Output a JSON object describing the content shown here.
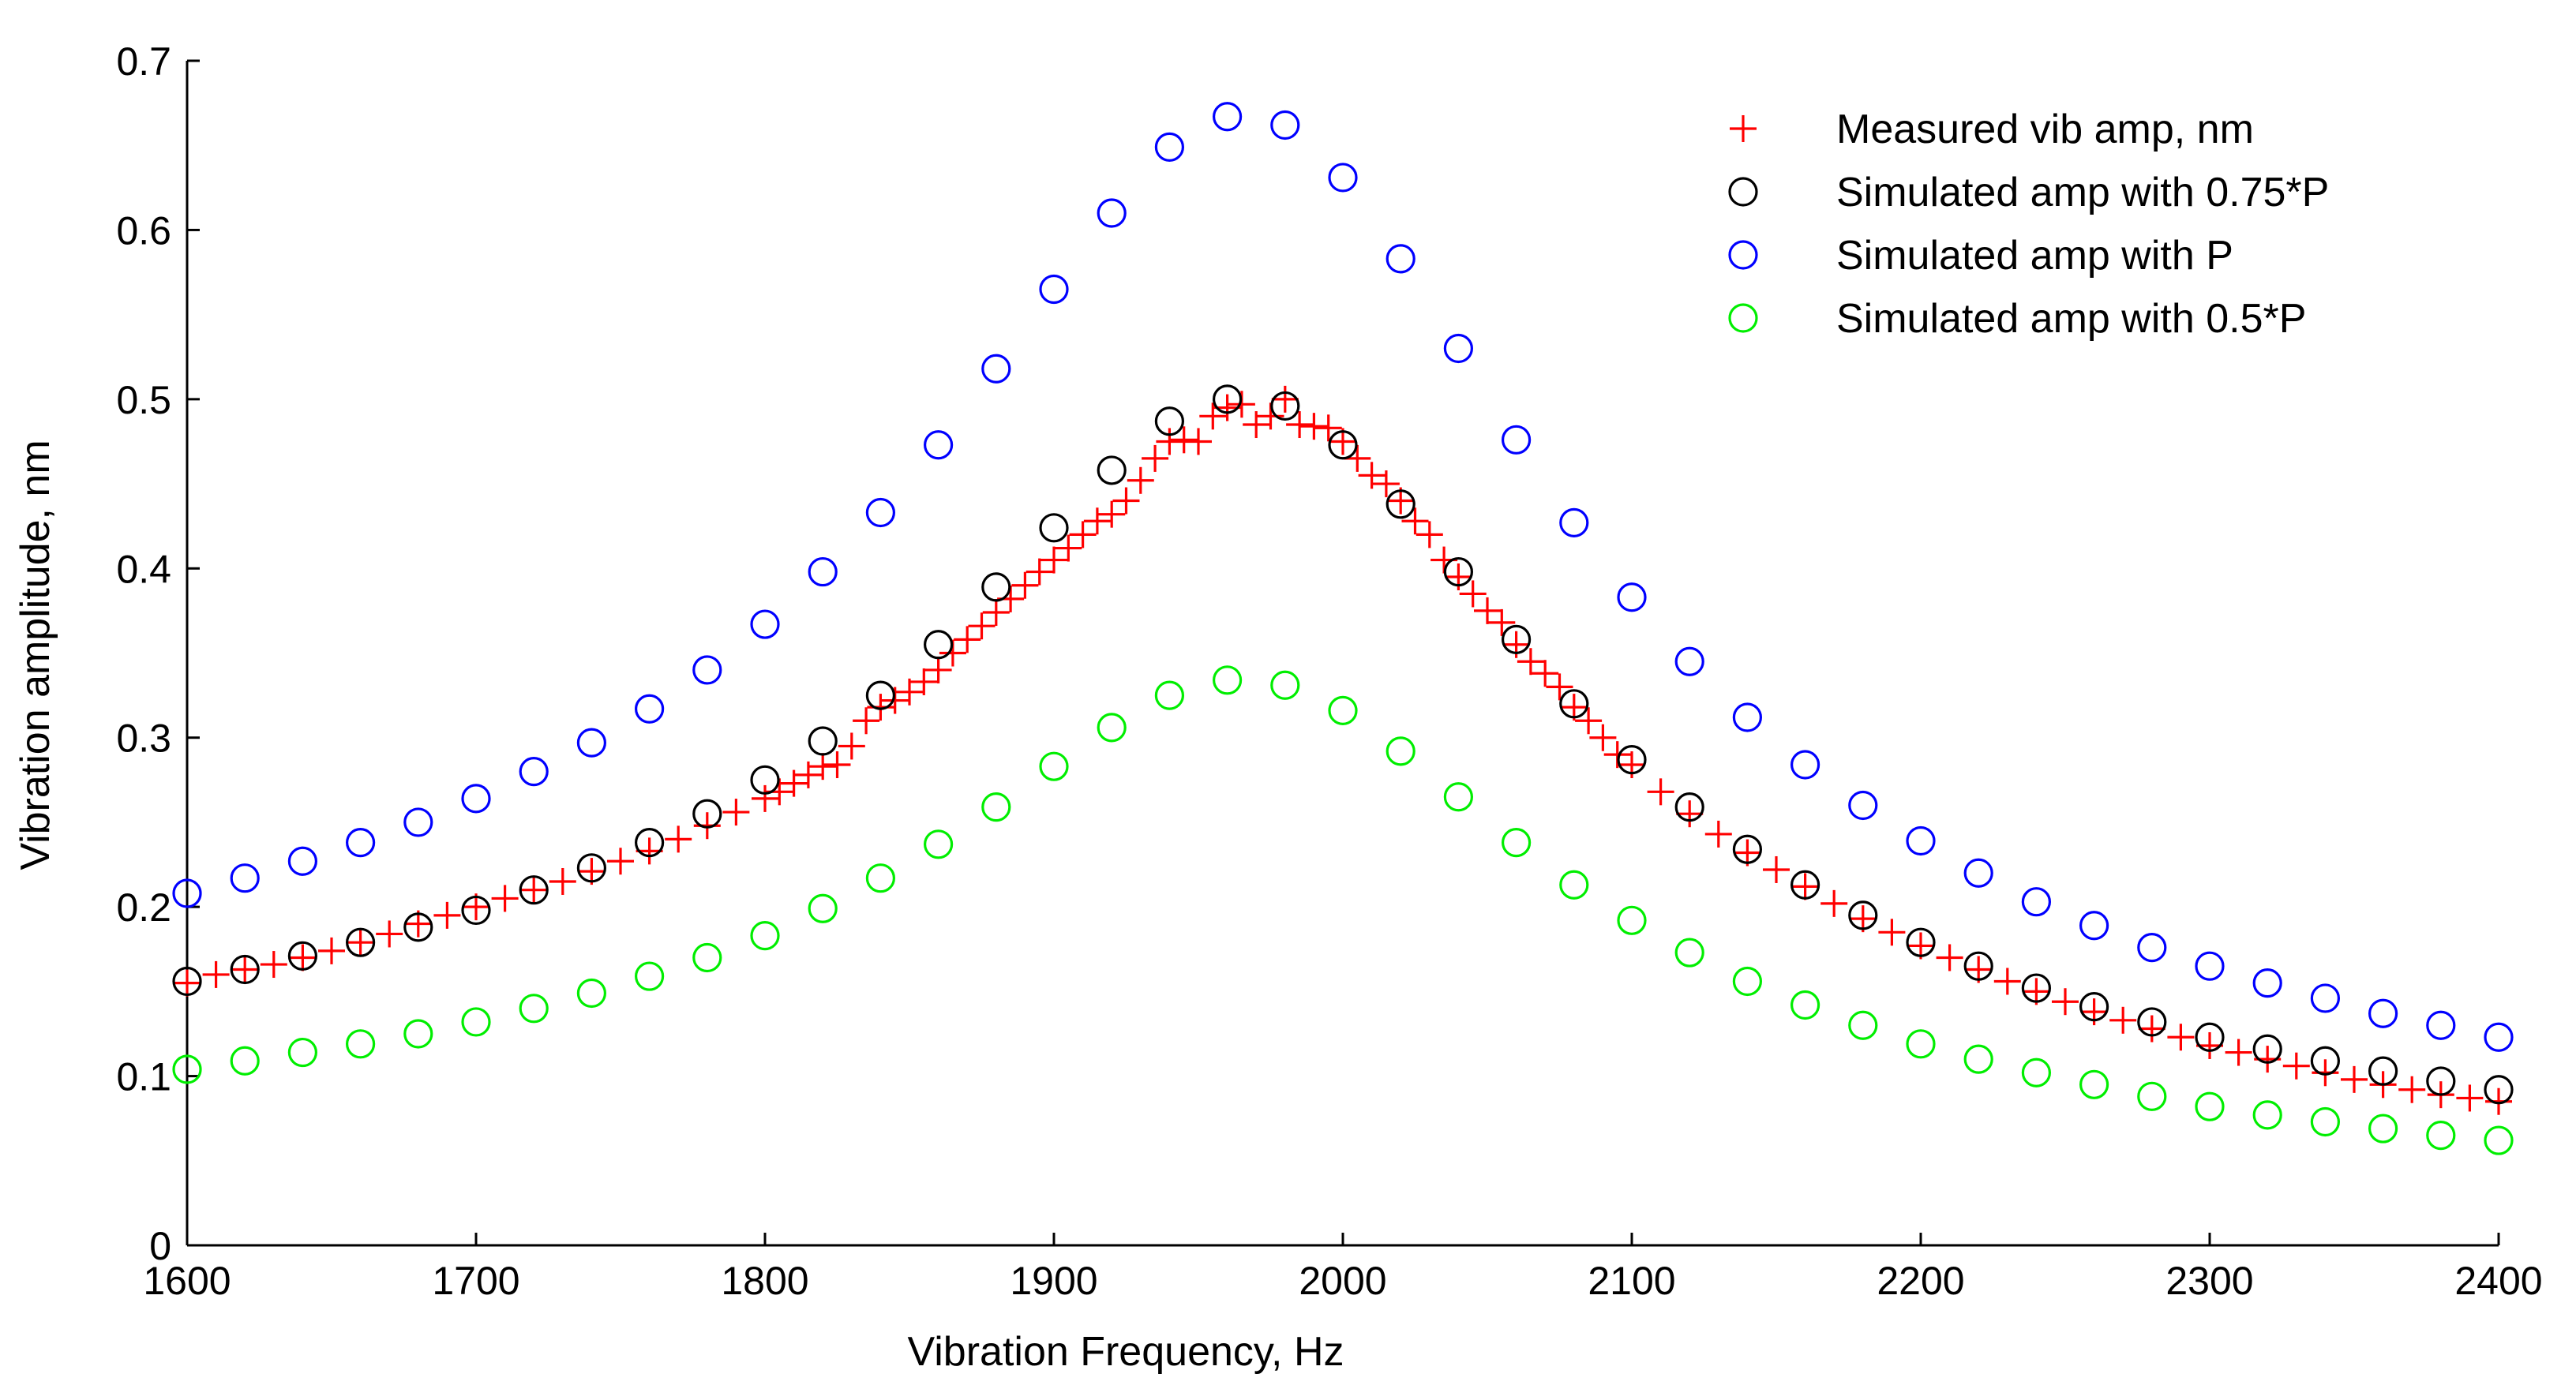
{
  "chart_data": {
    "type": "scatter",
    "title": "",
    "xlabel": "Vibration Frequency, Hz",
    "ylabel": "Vibration amplitude, nm",
    "xlim": [
      1600,
      2400
    ],
    "ylim": [
      0,
      0.7
    ],
    "xticks": [
      1600,
      1700,
      1800,
      1900,
      2000,
      2100,
      2200,
      2300,
      2400
    ],
    "xtick_labels": [
      "1600",
      "1700",
      "1800",
      "1900",
      "2000",
      "2100",
      "2200",
      "2300",
      "2400"
    ],
    "yticks": [
      0,
      0.1,
      0.2,
      0.3,
      0.4,
      0.5,
      0.6,
      0.7
    ],
    "ytick_labels": [
      "0",
      "0.1",
      "0.2",
      "0.3",
      "0.4",
      "0.5",
      "0.6",
      "0.7"
    ],
    "grid": false,
    "legend_position": "top-right",
    "series": [
      {
        "name": "Measured vib amp, nm",
        "marker": "plus",
        "color": "#ff0000",
        "x": [
          1600,
          1610,
          1620,
          1630,
          1640,
          1650,
          1660,
          1670,
          1680,
          1690,
          1700,
          1710,
          1720,
          1730,
          1740,
          1750,
          1760,
          1770,
          1780,
          1790,
          1800,
          1805,
          1810,
          1815,
          1820,
          1825,
          1830,
          1835,
          1840,
          1845,
          1850,
          1855,
          1860,
          1865,
          1870,
          1875,
          1880,
          1885,
          1890,
          1895,
          1900,
          1905,
          1910,
          1915,
          1920,
          1925,
          1930,
          1935,
          1940,
          1945,
          1950,
          1955,
          1960,
          1965,
          1970,
          1975,
          1980,
          1985,
          1990,
          1995,
          2000,
          2005,
          2010,
          2015,
          2020,
          2025,
          2030,
          2035,
          2040,
          2045,
          2050,
          2055,
          2060,
          2065,
          2070,
          2075,
          2080,
          2085,
          2090,
          2095,
          2100,
          2110,
          2120,
          2130,
          2140,
          2150,
          2160,
          2170,
          2180,
          2190,
          2200,
          2210,
          2220,
          2230,
          2240,
          2250,
          2260,
          2270,
          2280,
          2290,
          2300,
          2310,
          2320,
          2330,
          2340,
          2350,
          2360,
          2370,
          2380,
          2390,
          2400
        ],
        "y": [
          0.155,
          0.16,
          0.163,
          0.166,
          0.17,
          0.174,
          0.179,
          0.184,
          0.19,
          0.195,
          0.2,
          0.205,
          0.21,
          0.215,
          0.221,
          0.227,
          0.233,
          0.24,
          0.248,
          0.256,
          0.264,
          0.268,
          0.273,
          0.278,
          0.283,
          0.284,
          0.295,
          0.31,
          0.318,
          0.322,
          0.327,
          0.333,
          0.34,
          0.35,
          0.358,
          0.366,
          0.374,
          0.382,
          0.39,
          0.398,
          0.405,
          0.412,
          0.42,
          0.428,
          0.432,
          0.44,
          0.452,
          0.465,
          0.475,
          0.476,
          0.475,
          0.49,
          0.495,
          0.497,
          0.485,
          0.49,
          0.5,
          0.485,
          0.484,
          0.483,
          0.475,
          0.465,
          0.455,
          0.45,
          0.44,
          0.428,
          0.42,
          0.405,
          0.395,
          0.385,
          0.375,
          0.368,
          0.355,
          0.345,
          0.338,
          0.33,
          0.318,
          0.31,
          0.3,
          0.29,
          0.284,
          0.268,
          0.255,
          0.243,
          0.232,
          0.222,
          0.212,
          0.202,
          0.193,
          0.185,
          0.177,
          0.17,
          0.163,
          0.156,
          0.15,
          0.144,
          0.138,
          0.133,
          0.128,
          0.123,
          0.118,
          0.114,
          0.11,
          0.106,
          0.102,
          0.098,
          0.095,
          0.092,
          0.089,
          0.087,
          0.085
        ]
      },
      {
        "name": "Simulated amp with 0.75*P",
        "marker": "circle",
        "color": "#000000",
        "x": [
          1600,
          1620,
          1640,
          1660,
          1680,
          1700,
          1720,
          1740,
          1760,
          1780,
          1800,
          1820,
          1840,
          1860,
          1880,
          1900,
          1920,
          1940,
          1960,
          1980,
          2000,
          2020,
          2040,
          2060,
          2080,
          2100,
          2120,
          2140,
          2160,
          2180,
          2200,
          2220,
          2240,
          2260,
          2280,
          2300,
          2320,
          2340,
          2360,
          2380,
          2400
        ],
        "y": [
          0.156,
          0.163,
          0.171,
          0.179,
          0.188,
          0.198,
          0.21,
          0.223,
          0.238,
          0.255,
          0.275,
          0.298,
          0.325,
          0.355,
          0.389,
          0.424,
          0.458,
          0.487,
          0.5,
          0.496,
          0.473,
          0.438,
          0.398,
          0.358,
          0.32,
          0.287,
          0.259,
          0.234,
          0.213,
          0.195,
          0.179,
          0.165,
          0.152,
          0.141,
          0.132,
          0.123,
          0.116,
          0.109,
          0.103,
          0.097,
          0.092
        ]
      },
      {
        "name": "Simulated amp with P",
        "marker": "circle",
        "color": "#0000ff",
        "x": [
          1600,
          1620,
          1640,
          1660,
          1680,
          1700,
          1720,
          1740,
          1760,
          1780,
          1800,
          1820,
          1840,
          1860,
          1880,
          1900,
          1920,
          1940,
          1960,
          1980,
          2000,
          2020,
          2040,
          2060,
          2080,
          2100,
          2120,
          2140,
          2160,
          2180,
          2200,
          2220,
          2240,
          2260,
          2280,
          2300,
          2320,
          2340,
          2360,
          2380,
          2400
        ],
        "y": [
          0.208,
          0.217,
          0.227,
          0.238,
          0.25,
          0.264,
          0.28,
          0.297,
          0.317,
          0.34,
          0.367,
          0.398,
          0.433,
          0.473,
          0.518,
          0.565,
          0.61,
          0.649,
          0.667,
          0.662,
          0.631,
          0.583,
          0.53,
          0.476,
          0.427,
          0.383,
          0.345,
          0.312,
          0.284,
          0.26,
          0.239,
          0.22,
          0.203,
          0.189,
          0.176,
          0.165,
          0.155,
          0.146,
          0.137,
          0.13,
          0.123
        ]
      },
      {
        "name": "Simulated amp with 0.5*P",
        "marker": "circle",
        "color": "#00ee00",
        "x": [
          1600,
          1620,
          1640,
          1660,
          1680,
          1700,
          1720,
          1740,
          1760,
          1780,
          1800,
          1820,
          1840,
          1860,
          1880,
          1900,
          1920,
          1940,
          1960,
          1980,
          2000,
          2020,
          2040,
          2060,
          2080,
          2100,
          2120,
          2140,
          2160,
          2180,
          2200,
          2220,
          2240,
          2260,
          2280,
          2300,
          2320,
          2340,
          2360,
          2380,
          2400
        ],
        "y": [
          0.104,
          0.109,
          0.114,
          0.119,
          0.125,
          0.132,
          0.14,
          0.149,
          0.159,
          0.17,
          0.183,
          0.199,
          0.217,
          0.237,
          0.259,
          0.283,
          0.306,
          0.325,
          0.334,
          0.331,
          0.316,
          0.292,
          0.265,
          0.238,
          0.213,
          0.192,
          0.173,
          0.156,
          0.142,
          0.13,
          0.119,
          0.11,
          0.102,
          0.095,
          0.088,
          0.082,
          0.077,
          0.073,
          0.069,
          0.065,
          0.062
        ]
      }
    ]
  }
}
